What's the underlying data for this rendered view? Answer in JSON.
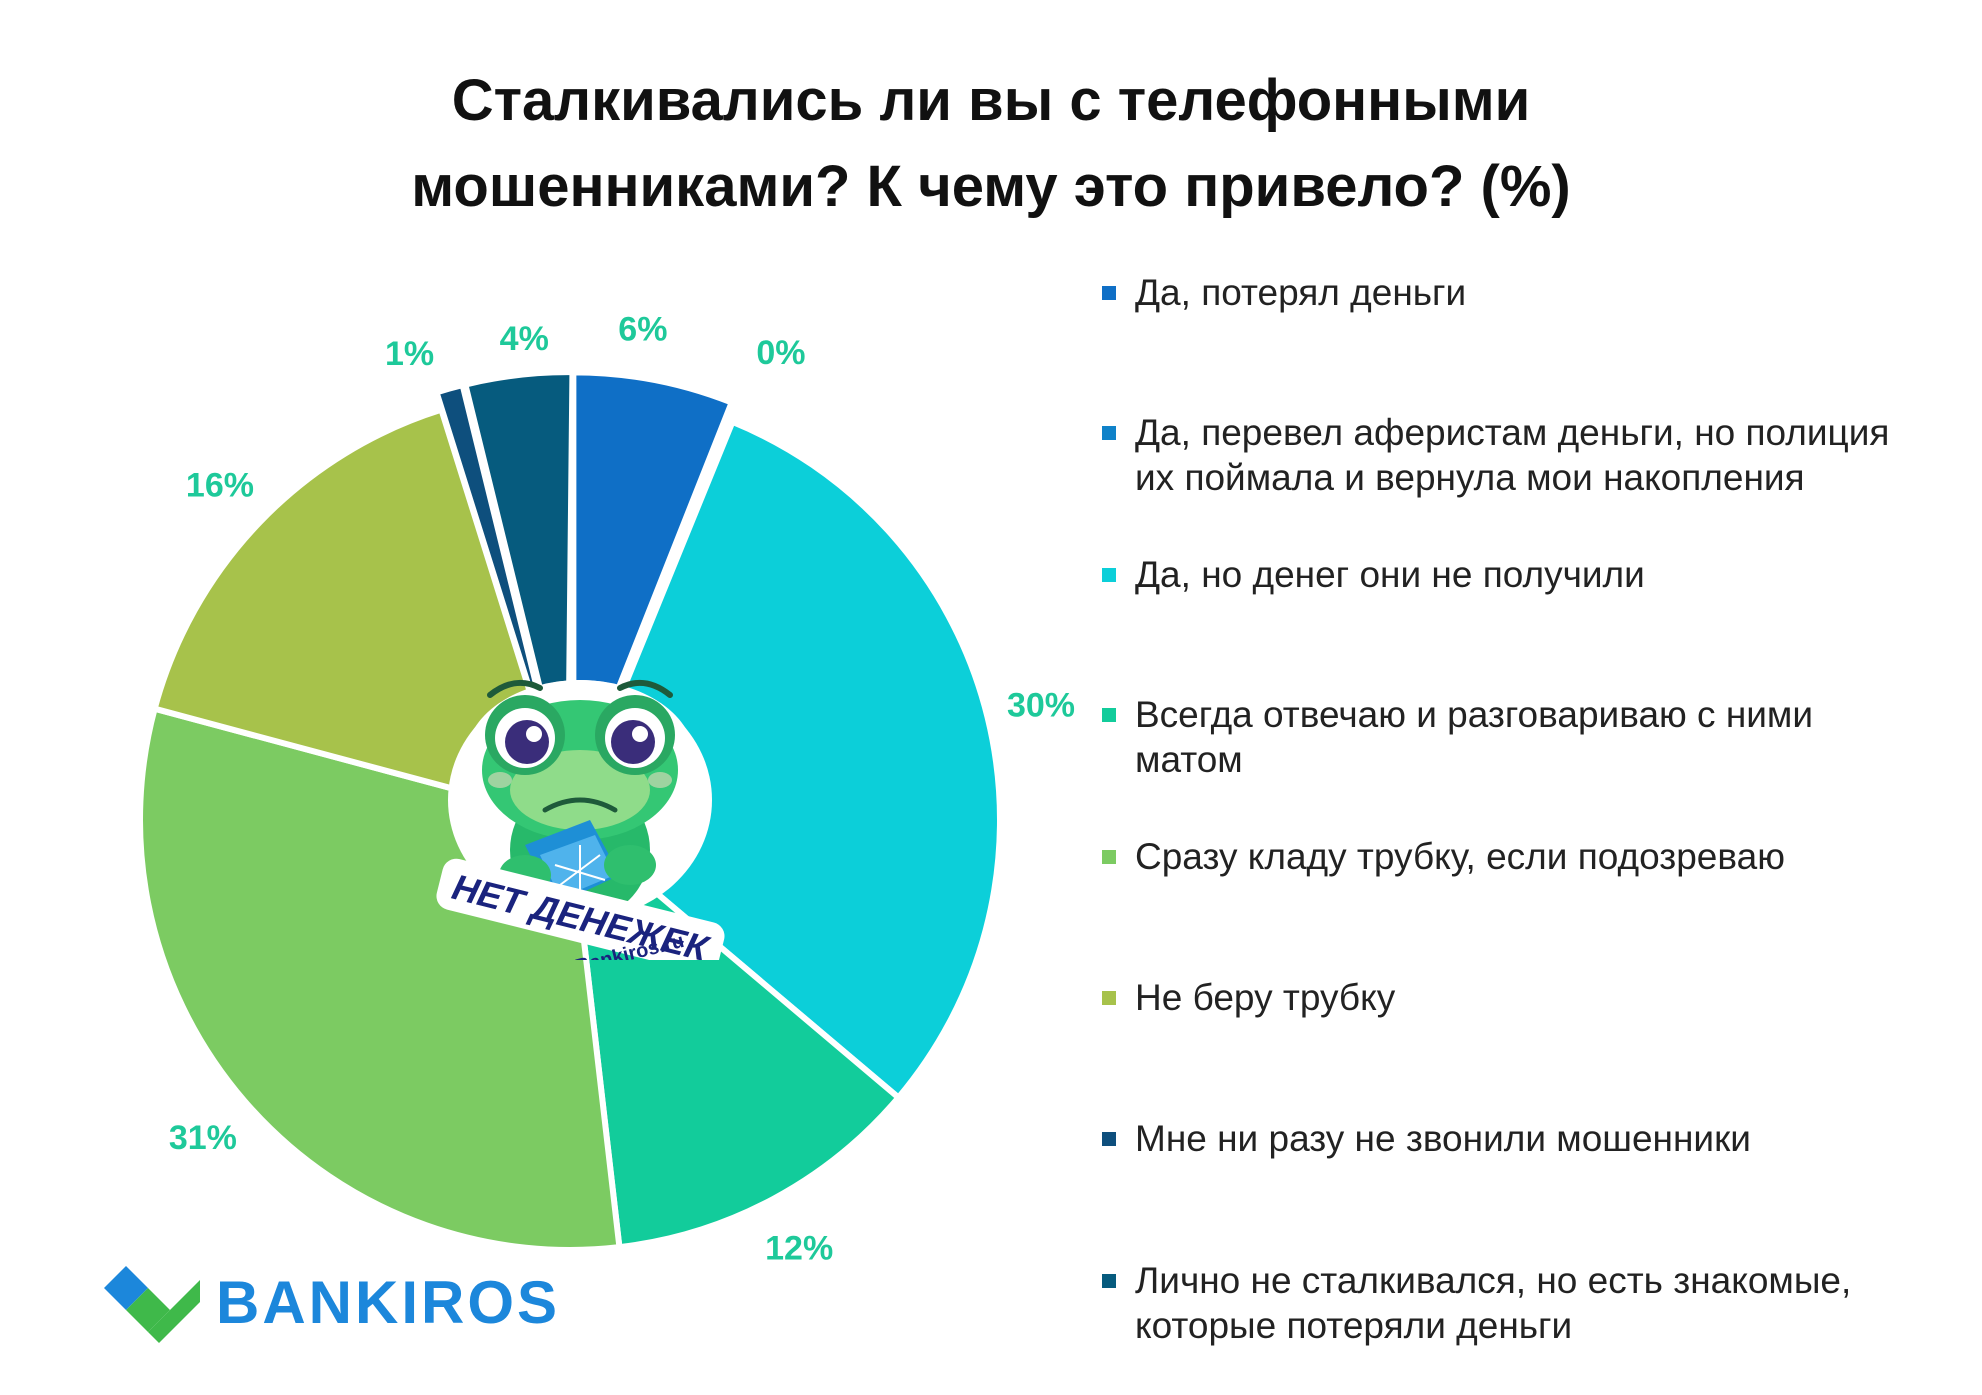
{
  "title": {
    "line1": "Сталкивались ли вы с телефонными",
    "line2": "мошенниками? К чему это привело? (%)"
  },
  "label_color": "#1ec99a",
  "chart_data": {
    "type": "pie",
    "title": "Сталкивались ли вы с телефонными мошенниками? К чему это привело? (%)",
    "legend_position": "right",
    "slices": [
      {
        "name": "Да, потерял деньги",
        "value": 6,
        "label": "6%",
        "color": "#0f6fc6",
        "exploded": true
      },
      {
        "name": "Да, перевел аферистам деньги, но полиция их поймала и вернула мои накопления",
        "value": 0,
        "label": "0%",
        "color": "#0f82c9",
        "exploded": true
      },
      {
        "name": "Да, но денег они не получили",
        "value": 30,
        "label": "30%",
        "color": "#0ccfd9",
        "exploded": false
      },
      {
        "name": "Всегда отвечаю и разговариваю с ними матом",
        "value": 12,
        "label": "12%",
        "color": "#12cc9b",
        "exploded": false
      },
      {
        "name": "Сразу кладу трубку, если подозреваю",
        "value": 31,
        "label": "31%",
        "color": "#7ccb62",
        "exploded": false
      },
      {
        "name": "Не беру трубку",
        "value": 16,
        "label": "16%",
        "color": "#a7c24b",
        "exploded": false
      },
      {
        "name": "Мне ни разу не звонили мошенники",
        "value": 1,
        "label": "1%",
        "color": "#0e4f7d",
        "exploded": true
      },
      {
        "name": "Лично не сталкивался, но есть знакомые, которые потеряли деньги",
        "value": 4,
        "label": "4%",
        "color": "#065b7e",
        "exploded": true
      }
    ]
  },
  "legend": [
    {
      "lines": [
        "Да, потерял деньги"
      ],
      "color": "#0f6fc6"
    },
    {
      "lines": [
        "Да, перевел аферистам деньги, но полиция",
        "их поймала и вернула мои накопления"
      ],
      "color": "#0f82c9"
    },
    {
      "lines": [
        "Да, но денег они не получили"
      ],
      "color": "#0ccfd9"
    },
    {
      "lines": [
        "Всегда отвечаю и разговариваю с ними",
        "матом"
      ],
      "color": "#12cc9b"
    },
    {
      "lines": [
        "Сразу кладу трубку, если подозреваю"
      ],
      "color": "#7ccb62"
    },
    {
      "lines": [
        "Не беру трубку"
      ],
      "color": "#a7c24b"
    },
    {
      "lines": [
        "Мне ни разу не звонили мошенники"
      ],
      "color": "#0e4f7d"
    },
    {
      "lines": [
        "Лично не сталкивался, но есть знакомые,",
        "которые потеряли деньги"
      ],
      "color": "#065b7e"
    }
  ],
  "mascot": {
    "caption": "НЕТ ДЕНЕЖЕК",
    "site": "Bankiros.ru"
  },
  "logo": {
    "text": "BANKIROS",
    "colors": {
      "blue": "#1c87db",
      "green": "#3fb94a"
    }
  }
}
